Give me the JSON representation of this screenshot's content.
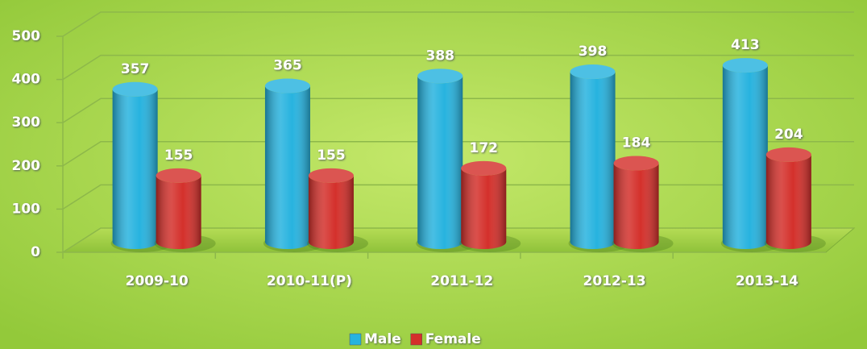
{
  "chart_data": {
    "type": "bar",
    "categories": [
      "2009-10",
      "2010-11(P)",
      "2011-12",
      "2012-13",
      "2013-14"
    ],
    "series": [
      {
        "name": "Male",
        "color": "#27b3df",
        "values": [
          357,
          365,
          388,
          398,
          413
        ]
      },
      {
        "name": "Female",
        "color": "#d4302b",
        "values": [
          155,
          155,
          172,
          184,
          204
        ]
      }
    ],
    "ylim": [
      0,
      500
    ],
    "yticks": [
      0,
      100,
      200,
      300,
      400,
      500
    ],
    "grid": true,
    "legend": "bottom"
  }
}
